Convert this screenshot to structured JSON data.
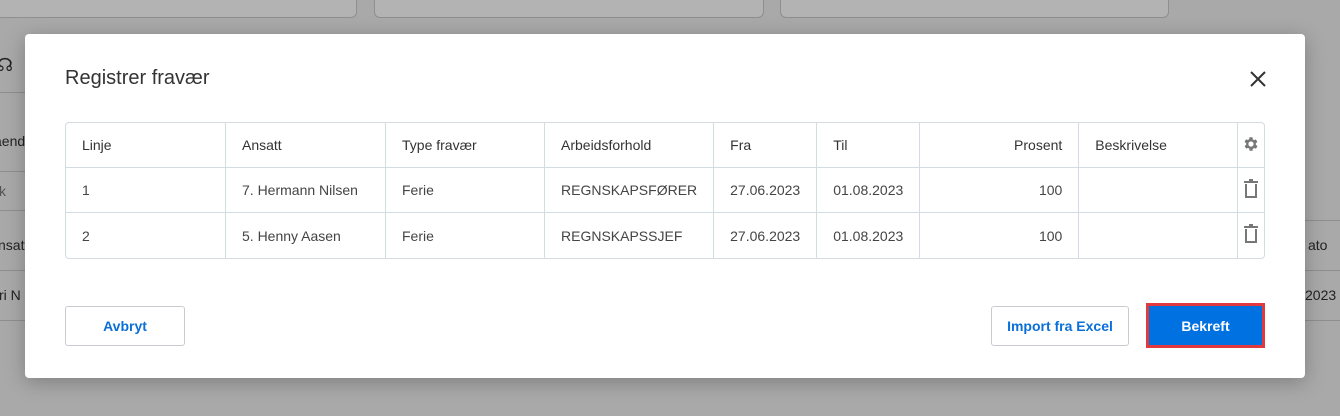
{
  "background": {
    "fragments": [
      "ående",
      "k",
      "nsatt",
      "ri N",
      "ato",
      "2023"
    ]
  },
  "modal": {
    "title": "Registrer fravær",
    "columns": [
      "Linje",
      "Ansatt",
      "Type fravær",
      "Arbeidsforhold",
      "Fra",
      "Til",
      "Prosent",
      "Beskrivelse"
    ],
    "rows": [
      {
        "linje": "1",
        "ansatt": "7. Hermann Nilsen",
        "type": "Ferie",
        "arbeidsforhold": "REGNSKAPSFØRER",
        "fra": "27.06.2023",
        "til": "01.08.2023",
        "prosent": "100",
        "beskrivelse": ""
      },
      {
        "linje": "2",
        "ansatt": "5. Henny Aasen",
        "type": "Ferie",
        "arbeidsforhold": "REGNSKAPSSJEF",
        "fra": "27.06.2023",
        "til": "01.08.2023",
        "prosent": "100",
        "beskrivelse": ""
      }
    ],
    "buttons": {
      "cancel": "Avbryt",
      "import": "Import fra Excel",
      "confirm": "Bekreft"
    }
  },
  "colors": {
    "primary": "#0071e0",
    "focus_outline": "#e0393e"
  }
}
